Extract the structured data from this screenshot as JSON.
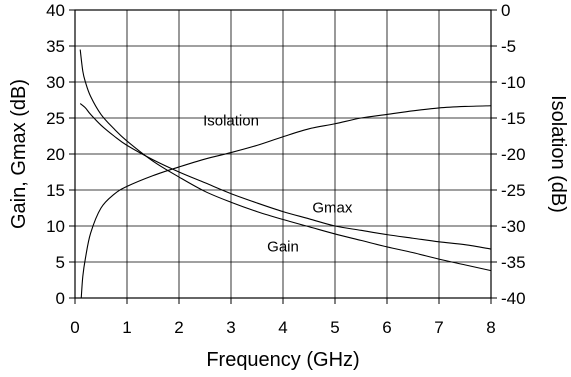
{
  "chart_data": {
    "type": "line",
    "xlabel": "Frequency (GHz)",
    "ylabel_left": "Gain, Gmax (dB)",
    "ylabel_right": "Isolation (dB)",
    "xlim": [
      0,
      8
    ],
    "ylim_left": [
      0,
      40
    ],
    "ylim_right": [
      -40,
      0
    ],
    "x_ticks": [
      "0",
      "1",
      "2",
      "3",
      "4",
      "5",
      "6",
      "7",
      "8"
    ],
    "y_left_ticks": [
      "0",
      "5",
      "10",
      "15",
      "20",
      "25",
      "30",
      "35",
      "40"
    ],
    "y_right_ticks": [
      "-40",
      "-35",
      "-30",
      "-25",
      "-20",
      "-15",
      "-10",
      "-5",
      "0"
    ],
    "grid": true,
    "series": [
      {
        "name": "Gmax",
        "axis": "left",
        "x": [
          0.1,
          0.2,
          0.3,
          0.5,
          0.75,
          1,
          1.5,
          2,
          2.5,
          3,
          3.5,
          4,
          4.5,
          5,
          5.5,
          6,
          6.5,
          7,
          7.5,
          8
        ],
        "y": [
          27,
          26.4,
          25.5,
          24,
          22.5,
          21.2,
          19.2,
          17.5,
          16,
          14.5,
          13.2,
          12,
          11,
          10,
          9.4,
          8.8,
          8.3,
          7.8,
          7.4,
          6.8
        ]
      },
      {
        "name": "Gain",
        "axis": "left",
        "x": [
          0.1,
          0.15,
          0.2,
          0.3,
          0.5,
          0.75,
          1,
          1.5,
          2,
          2.5,
          3,
          3.5,
          4,
          4.5,
          5,
          5.5,
          6,
          6.5,
          7,
          7.5,
          8
        ],
        "y": [
          34.5,
          31.5,
          30,
          28,
          25.5,
          23.5,
          21.8,
          19,
          16.8,
          14.8,
          13.3,
          12,
          10.9,
          9.9,
          8.9,
          8,
          7.1,
          6.3,
          5.4,
          4.6,
          3.8
        ]
      },
      {
        "name": "Isolation",
        "axis": "right",
        "x": [
          0.12,
          0.15,
          0.2,
          0.3,
          0.5,
          0.75,
          1,
          1.5,
          2,
          2.5,
          3,
          3.5,
          4,
          4.5,
          5,
          5.5,
          6,
          6.5,
          7,
          7.5,
          8
        ],
        "y": [
          -40,
          -37,
          -34.5,
          -31,
          -27.5,
          -25.6,
          -24.5,
          -23,
          -21.8,
          -20.7,
          -19.8,
          -18.8,
          -17.6,
          -16.5,
          -15.8,
          -15,
          -14.5,
          -14,
          -13.6,
          -13.4,
          -13.3
        ]
      }
    ],
    "annotations": [
      {
        "text": "Isolation",
        "series": "Isolation"
      },
      {
        "text": "Gmax",
        "series": "Gmax"
      },
      {
        "text": "Gain",
        "series": "Gain"
      }
    ]
  }
}
